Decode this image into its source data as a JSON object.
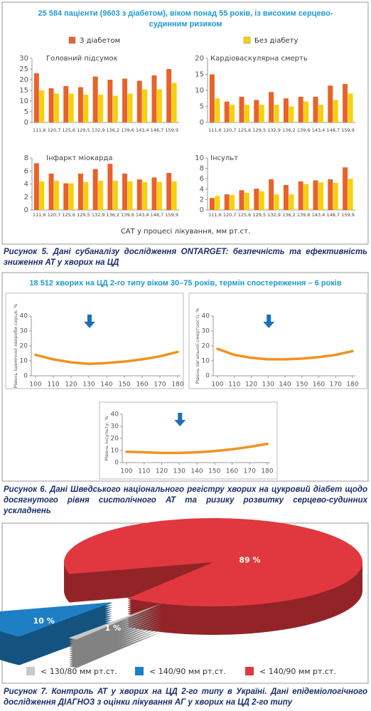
{
  "chart_data": [
    {
      "type": "bar",
      "title": "25 584 пацієнти (9603 з діабетом), віком понад 55 років, із високим серцево-судинним ризиком",
      "series": [
        {
          "name": "З діабетом",
          "color": "#e8622a"
        },
        {
          "name": "Без діабету",
          "color": "#f5d10c"
        }
      ],
      "categories": [
        "111,6",
        "120,7",
        "125,6",
        "129,5",
        "132,9",
        "136,2",
        "139,6",
        "143,4",
        "148,7",
        "159,9"
      ],
      "x_label": "САТ у процесі лікування, мм рт.ст.",
      "panels": [
        {
          "title": "Головний підсумок",
          "ylim": [
            0,
            30
          ],
          "yticks": [
            0,
            5,
            10,
            15,
            20,
            25,
            30
          ],
          "series": [
            {
              "values": [
                23,
                16,
                17,
                16.5,
                21.5,
                20,
                20.5,
                19.5,
                22,
                25
              ]
            },
            {
              "values": [
                15,
                13.5,
                13.5,
                13,
                13,
                12.5,
                13.5,
                15.5,
                15.5,
                18.5
              ]
            }
          ]
        },
        {
          "title": "Кардіоваскулярна смерть",
          "ylim": [
            0,
            20
          ],
          "yticks": [
            0,
            5,
            10,
            15,
            20
          ],
          "series": [
            {
              "values": [
                15,
                6.5,
                8,
                7,
                9.5,
                7.5,
                8,
                8,
                11.5,
                12
              ]
            },
            {
              "values": [
                7.5,
                5.5,
                5.5,
                5.5,
                5.5,
                5,
                6.5,
                5.5,
                7,
                9
              ]
            }
          ]
        },
        {
          "title": "Інфаркт міокарда",
          "ylim": [
            0,
            8
          ],
          "yticks": [
            0,
            2,
            4,
            6,
            8
          ],
          "series": [
            {
              "values": [
                7.2,
                5.6,
                4.1,
                5.6,
                6.3,
                7.1,
                5.6,
                4.7,
                5,
                5.7
              ]
            },
            {
              "values": [
                4.4,
                4.5,
                4.1,
                4.3,
                4.5,
                4.5,
                4.4,
                4.3,
                4.3,
                4.4
              ]
            }
          ]
        },
        {
          "title": "Інсульт",
          "ylim": [
            0,
            10
          ],
          "yticks": [
            0,
            2,
            4,
            6,
            8,
            10
          ],
          "series": [
            {
              "values": [
                2.3,
                3,
                3.8,
                4.1,
                5.9,
                4.8,
                5.5,
                5.7,
                5.9,
                8.2
              ]
            },
            {
              "values": [
                2.7,
                2.9,
                3.3,
                3.6,
                3,
                3,
                5,
                5.3,
                5.2,
                6
              ]
            }
          ]
        }
      ],
      "caption": "Рисунок 5. Дані субаналізу дослідження ONTARGET: безпечність та ефективність зниження АТ у хворих на ЦД"
    },
    {
      "type": "line",
      "title": "18 512 хворих на ЦД 2-го типу віком 30–75 років, термін спостереження – 6 років",
      "x": [
        100,
        110,
        120,
        130,
        140,
        150,
        160,
        170,
        180
      ],
      "xlim": [
        100,
        180
      ],
      "xticks": [
        100,
        110,
        120,
        130,
        140,
        150,
        160,
        170,
        180
      ],
      "color": "#f0921e",
      "panels": [
        {
          "y_label": "Рівень ішемічної хвороби серця, %",
          "ylim": [
            0,
            40
          ],
          "yticks": [
            0,
            10,
            20,
            30,
            40
          ],
          "values": [
            14,
            11,
            9,
            8,
            8.5,
            9.5,
            11,
            13,
            16
          ]
        },
        {
          "y_label": "Рівень загальної смертності, %",
          "ylim": [
            0,
            40
          ],
          "yticks": [
            0,
            10,
            20,
            30,
            40
          ],
          "values": [
            18,
            14,
            12,
            11,
            11,
            11.5,
            12.5,
            14,
            16.5
          ]
        },
        {
          "y_label": "Рівень інсульту, %",
          "ylim": [
            0,
            40
          ],
          "yticks": [
            0,
            10,
            20,
            30,
            40
          ],
          "values": [
            9,
            8.5,
            8,
            8,
            8.5,
            9.5,
            11,
            13,
            15.5
          ]
        }
      ],
      "caption": "Рисунок 6. Дані Шведського національного регістру хворих на цукровий діабет щодо досягнутого рівня систолічного АТ та ризику розвитку серцево-судинних ускладнень"
    },
    {
      "type": "pie",
      "categories": [
        "< 130/80 мм рт.ст.",
        "< 140/90 мм рт.ст.",
        "< 140/90 мм рт.ст."
      ],
      "values": [
        1,
        10,
        89
      ],
      "value_labels": [
        "1 %",
        "10 %",
        "89 %"
      ],
      "colors": [
        "#c8c8c8",
        "#1f7fc4",
        "#e0383e"
      ],
      "caption": "Рисунок 7. Контроль АТ у хворих на ЦД 2-го типу в Україні. Дані епідеміологічного дослідження ДІАГНОЗ з оцінки лікування АГ у хворих на ЦД 2-го типу"
    }
  ]
}
